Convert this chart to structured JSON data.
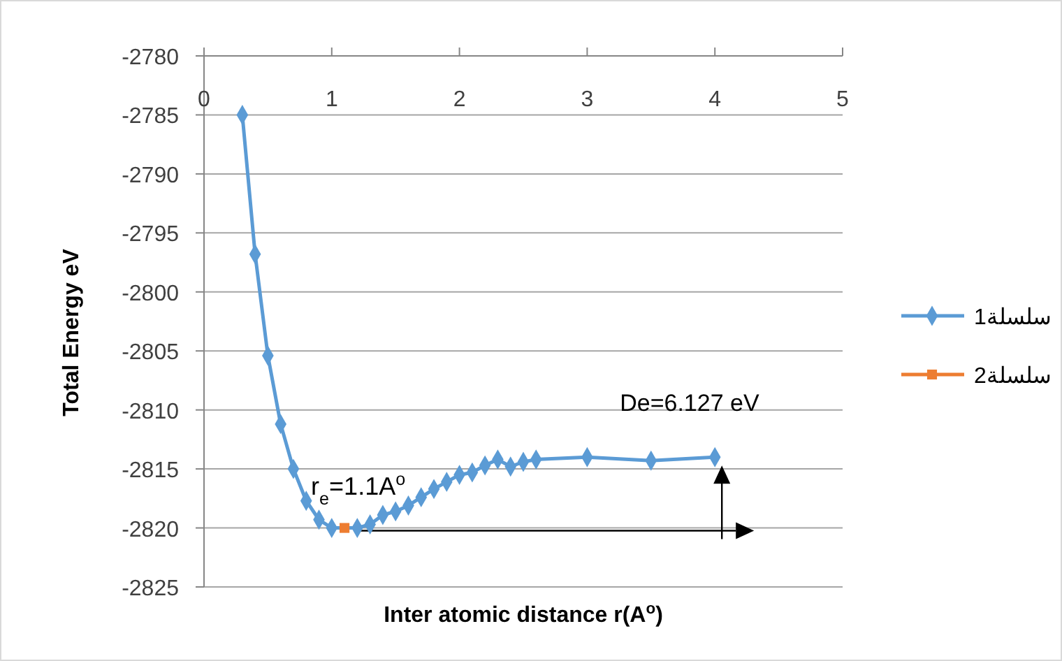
{
  "chart_data": {
    "type": "line",
    "xlabel": "Inter atomic distance r(A$^{o}$)",
    "ylabel": "Total Energy eV",
    "xlim": [
      0,
      5
    ],
    "xticks": [
      0,
      1,
      2,
      3,
      4,
      5
    ],
    "ylim": [
      -2825,
      -2780
    ],
    "yticks": [
      -2825,
      -2820,
      -2815,
      -2810,
      -2805,
      -2800,
      -2795,
      -2790,
      -2785,
      -2780
    ],
    "grid": "y",
    "legend": "right",
    "series": [
      {
        "name": "سلسلة1",
        "color": "#5b9bd5",
        "marker": "diamond",
        "x": [
          0.3,
          0.4,
          0.5,
          0.6,
          0.7,
          0.8,
          0.9,
          1.0,
          1.1,
          1.2,
          1.3,
          1.4,
          1.5,
          1.6,
          1.7,
          1.8,
          1.9,
          2.0,
          2.1,
          2.2,
          2.3,
          2.4,
          2.5,
          2.6,
          3.0,
          3.5,
          4.0
        ],
        "values": [
          -2785,
          -2796.8,
          -2805.4,
          -2811.2,
          -2815,
          -2817.7,
          -2819.3,
          -2820,
          null,
          -2820,
          -2819.7,
          -2818.9,
          -2818.6,
          -2818.1,
          -2817.4,
          -2816.7,
          -2816.1,
          -2815.5,
          -2815.3,
          -2814.7,
          -2814.2,
          -2814.8,
          -2814.4,
          -2814.2,
          -2814,
          -2814.3,
          -2814
        ]
      },
      {
        "name": "سلسلة2",
        "color": "#ed7d31",
        "marker": "square",
        "x": [
          1.1
        ],
        "values": [
          -2820
        ]
      }
    ],
    "annotations": [
      {
        "text": "r$_{e}$=1.1A$^{o}$",
        "x": 1.1,
        "y": -2820
      },
      {
        "text": "De=6.127 eV",
        "x": 4.0,
        "y": -2814
      }
    ]
  }
}
